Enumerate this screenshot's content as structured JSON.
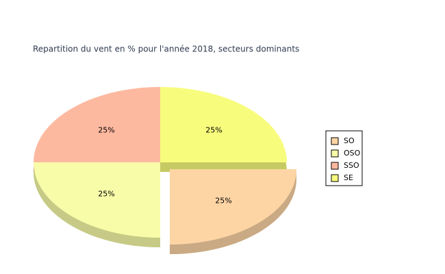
{
  "chart_data": {
    "type": "pie",
    "title": "Repartition du vent en % pour l'année 2018, secteurs dominants",
    "categories": [
      "SO",
      "OSO",
      "SSO",
      "SE"
    ],
    "values": [
      25,
      25,
      25,
      25
    ],
    "value_labels": [
      "25%",
      "25%",
      "25%",
      "25%"
    ],
    "colors": [
      "#fdd5a5",
      "#f8fca8",
      "#fdb9a0",
      "#f8fc7c"
    ],
    "explode": [
      true,
      false,
      false,
      false
    ],
    "legend": "right"
  }
}
